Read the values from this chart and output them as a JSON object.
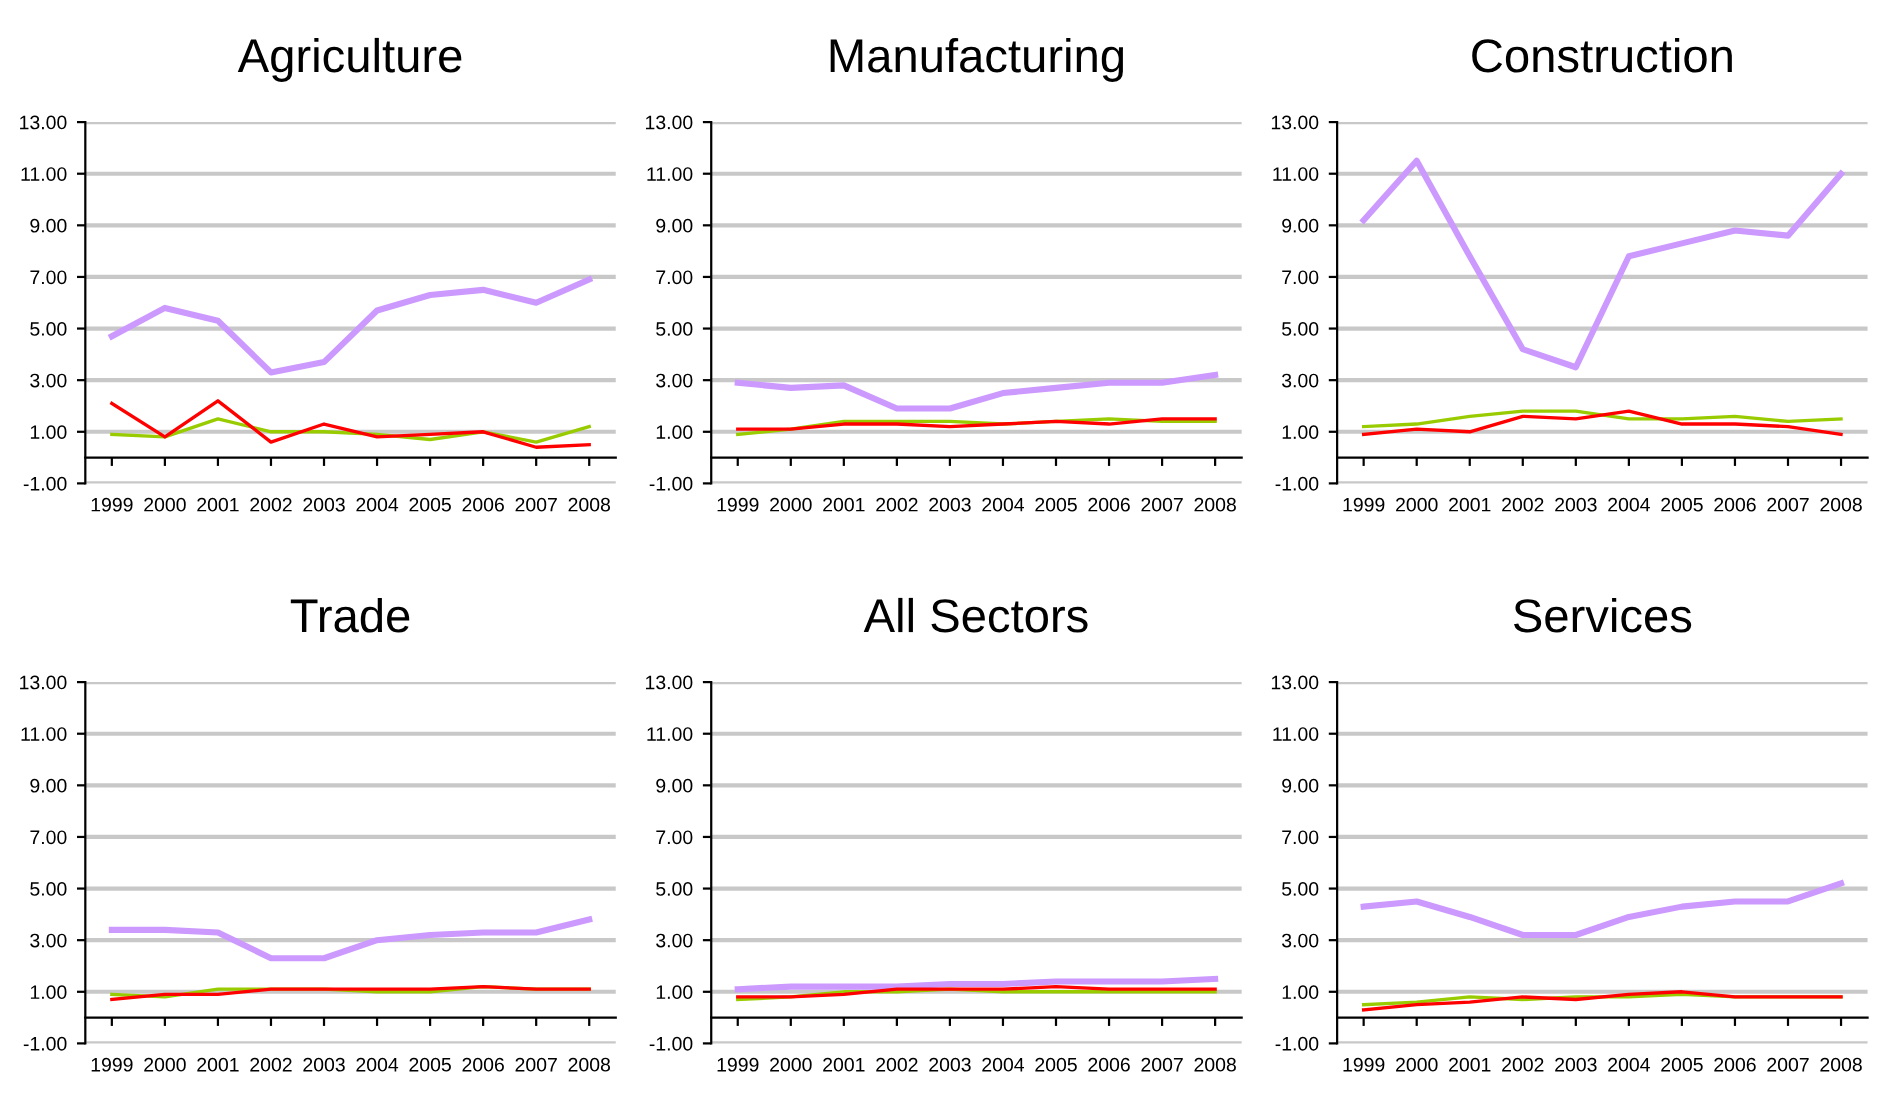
{
  "chart_data": [
    {
      "type": "line",
      "title": "Agriculture",
      "categories": [
        "1999",
        "2000",
        "2001",
        "2002",
        "2003",
        "2004",
        "2005",
        "2006",
        "2007",
        "2008"
      ],
      "ylim": [
        -1,
        13
      ],
      "yticks": [
        {
          "value": -1,
          "label": "-1.00"
        },
        {
          "value": 1,
          "label": "1.00"
        },
        {
          "value": 3,
          "label": "3.00"
        },
        {
          "value": 5,
          "label": "5.00"
        },
        {
          "value": 7,
          "label": "7.00"
        },
        {
          "value": 9,
          "label": "9.00"
        },
        {
          "value": 11,
          "label": "11.00"
        },
        {
          "value": 13,
          "label": "13.00"
        }
      ],
      "grid": "y",
      "legend": false,
      "series": [
        {
          "color": "#cc99ff",
          "values": [
            4.7,
            5.8,
            5.3,
            3.3,
            3.7,
            5.7,
            6.3,
            6.5,
            6.0,
            6.9
          ]
        },
        {
          "color": "#99cc00",
          "values": [
            0.9,
            0.8,
            1.5,
            1.0,
            1.0,
            0.9,
            0.7,
            1.0,
            0.6,
            1.2
          ]
        },
        {
          "color": "#ff0000",
          "values": [
            2.1,
            0.8,
            2.2,
            0.6,
            1.3,
            0.8,
            0.9,
            1.0,
            0.4,
            0.5
          ]
        }
      ]
    },
    {
      "type": "line",
      "title": "Manufacturing",
      "categories": [
        "1999",
        "2000",
        "2001",
        "2002",
        "2003",
        "2004",
        "2005",
        "2006",
        "2007",
        "2008"
      ],
      "ylim": [
        -1,
        13
      ],
      "yticks": [
        {
          "value": -1,
          "label": "-1.00"
        },
        {
          "value": 1,
          "label": "1.00"
        },
        {
          "value": 3,
          "label": "3.00"
        },
        {
          "value": 5,
          "label": "5.00"
        },
        {
          "value": 7,
          "label": "7.00"
        },
        {
          "value": 9,
          "label": "9.00"
        },
        {
          "value": 11,
          "label": "11.00"
        },
        {
          "value": 13,
          "label": "13.00"
        }
      ],
      "grid": "y",
      "legend": false,
      "series": [
        {
          "color": "#cc99ff",
          "values": [
            2.9,
            2.7,
            2.8,
            1.9,
            1.9,
            2.5,
            2.7,
            2.9,
            2.9,
            3.2
          ]
        },
        {
          "color": "#99cc00",
          "values": [
            0.9,
            1.1,
            1.4,
            1.4,
            1.4,
            1.3,
            1.4,
            1.5,
            1.4,
            1.4
          ]
        },
        {
          "color": "#ff0000",
          "values": [
            1.1,
            1.1,
            1.3,
            1.3,
            1.2,
            1.3,
            1.4,
            1.3,
            1.5,
            1.5
          ]
        }
      ]
    },
    {
      "type": "line",
      "title": "Construction",
      "categories": [
        "1999",
        "2000",
        "2001",
        "2002",
        "2003",
        "2004",
        "2005",
        "2006",
        "2007",
        "2008"
      ],
      "ylim": [
        -1,
        13
      ],
      "yticks": [
        {
          "value": -1,
          "label": "-1.00"
        },
        {
          "value": 1,
          "label": "1.00"
        },
        {
          "value": 3,
          "label": "3.00"
        },
        {
          "value": 5,
          "label": "5.00"
        },
        {
          "value": 7,
          "label": "7.00"
        },
        {
          "value": 9,
          "label": "9.00"
        },
        {
          "value": 11,
          "label": "11.00"
        },
        {
          "value": 13,
          "label": "13.00"
        }
      ],
      "grid": "y",
      "legend": false,
      "series": [
        {
          "color": "#cc99ff",
          "values": [
            9.2,
            11.5,
            7.8,
            4.2,
            3.5,
            7.8,
            8.3,
            8.8,
            8.6,
            11.0
          ]
        },
        {
          "color": "#99cc00",
          "values": [
            1.2,
            1.3,
            1.6,
            1.8,
            1.8,
            1.5,
            1.5,
            1.6,
            1.4,
            1.5
          ]
        },
        {
          "color": "#ff0000",
          "values": [
            0.9,
            1.1,
            1.0,
            1.6,
            1.5,
            1.8,
            1.3,
            1.3,
            1.2,
            0.9
          ]
        }
      ]
    },
    {
      "type": "line",
      "title": "Trade",
      "categories": [
        "1999",
        "2000",
        "2001",
        "2002",
        "2003",
        "2004",
        "2005",
        "2006",
        "2007",
        "2008"
      ],
      "ylim": [
        -1,
        13
      ],
      "yticks": [
        {
          "value": -1,
          "label": "-1.00"
        },
        {
          "value": 1,
          "label": "1.00"
        },
        {
          "value": 3,
          "label": "3.00"
        },
        {
          "value": 5,
          "label": "5.00"
        },
        {
          "value": 7,
          "label": "7.00"
        },
        {
          "value": 9,
          "label": "9.00"
        },
        {
          "value": 11,
          "label": "11.00"
        },
        {
          "value": 13,
          "label": "13.00"
        }
      ],
      "grid": "y",
      "legend": false,
      "series": [
        {
          "color": "#cc99ff",
          "values": [
            3.4,
            3.4,
            3.3,
            2.3,
            2.3,
            3.0,
            3.2,
            3.3,
            3.3,
            3.8
          ]
        },
        {
          "color": "#99cc00",
          "values": [
            0.9,
            0.8,
            1.1,
            1.1,
            1.1,
            1.0,
            1.0,
            1.2,
            1.1,
            1.1
          ]
        },
        {
          "color": "#ff0000",
          "values": [
            0.7,
            0.9,
            0.9,
            1.1,
            1.1,
            1.1,
            1.1,
            1.2,
            1.1,
            1.1
          ]
        }
      ]
    },
    {
      "type": "line",
      "title": "All Sectors",
      "categories": [
        "1999",
        "2000",
        "2001",
        "2002",
        "2003",
        "2004",
        "2005",
        "2006",
        "2007",
        "2008"
      ],
      "ylim": [
        -1,
        13
      ],
      "yticks": [
        {
          "value": -1,
          "label": "-1.00"
        },
        {
          "value": 1,
          "label": "1.00"
        },
        {
          "value": 3,
          "label": "3.00"
        },
        {
          "value": 5,
          "label": "5.00"
        },
        {
          "value": 7,
          "label": "7.00"
        },
        {
          "value": 9,
          "label": "9.00"
        },
        {
          "value": 11,
          "label": "11.00"
        },
        {
          "value": 13,
          "label": "13.00"
        }
      ],
      "grid": "y",
      "legend": false,
      "series": [
        {
          "color": "#cc99ff",
          "values": [
            1.1,
            1.2,
            1.2,
            1.2,
            1.3,
            1.3,
            1.4,
            1.4,
            1.4,
            1.5
          ]
        },
        {
          "color": "#99cc00",
          "values": [
            0.7,
            0.8,
            1.0,
            1.0,
            1.1,
            1.0,
            1.0,
            1.0,
            1.0,
            1.0
          ]
        },
        {
          "color": "#ff0000",
          "values": [
            0.8,
            0.8,
            0.9,
            1.1,
            1.1,
            1.1,
            1.2,
            1.1,
            1.1,
            1.1
          ]
        }
      ]
    },
    {
      "type": "line",
      "title": "Services",
      "categories": [
        "1999",
        "2000",
        "2001",
        "2002",
        "2003",
        "2004",
        "2005",
        "2006",
        "2007",
        "2008"
      ],
      "ylim": [
        -1,
        13
      ],
      "yticks": [
        {
          "value": -1,
          "label": "-1.00"
        },
        {
          "value": 1,
          "label": "1.00"
        },
        {
          "value": 3,
          "label": "3.00"
        },
        {
          "value": 5,
          "label": "5.00"
        },
        {
          "value": 7,
          "label": "7.00"
        },
        {
          "value": 9,
          "label": "9.00"
        },
        {
          "value": 11,
          "label": "11.00"
        },
        {
          "value": 13,
          "label": "13.00"
        }
      ],
      "grid": "y",
      "legend": false,
      "series": [
        {
          "color": "#cc99ff",
          "values": [
            4.3,
            4.5,
            3.9,
            3.2,
            3.2,
            3.9,
            4.3,
            4.5,
            4.5,
            5.2
          ]
        },
        {
          "color": "#99cc00",
          "values": [
            0.5,
            0.6,
            0.8,
            0.7,
            0.8,
            0.8,
            0.9,
            0.8,
            0.8,
            0.8
          ]
        },
        {
          "color": "#ff0000",
          "values": [
            0.3,
            0.5,
            0.6,
            0.8,
            0.7,
            0.9,
            1.0,
            0.8,
            0.8,
            0.8
          ]
        }
      ]
    }
  ]
}
